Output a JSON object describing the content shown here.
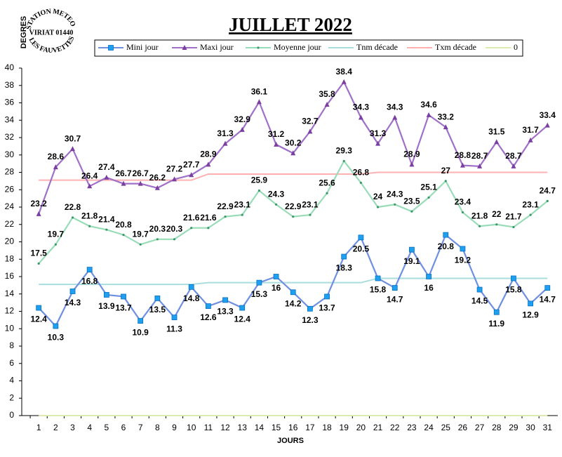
{
  "chart_data": {
    "type": "line",
    "title": "JUILLET 2022",
    "y_label": "DEGRES",
    "x_label": "JOURS",
    "logo": [
      "STATION METEO",
      "VIRIAT 01440",
      "LES FAUVETTES"
    ],
    "categories": [
      "1",
      "2",
      "3",
      "4",
      "5",
      "6",
      "7",
      "8",
      "9",
      "10",
      "11",
      "12",
      "13",
      "14",
      "15",
      "16",
      "17",
      "18",
      "19",
      "20",
      "21",
      "22",
      "23",
      "24",
      "25",
      "26",
      "27",
      "28",
      "29",
      "30",
      "31"
    ],
    "ylim": [
      0,
      40
    ],
    "yticks": [
      0,
      2,
      4,
      6,
      8,
      10,
      12,
      14,
      16,
      18,
      20,
      22,
      24,
      26,
      28,
      30,
      32,
      34,
      36,
      38,
      40
    ],
    "grid": false,
    "series": [
      {
        "name": "Mini jour",
        "color": "#6f8fe0",
        "marker_color": "#1ea0f0",
        "marker": "square",
        "labels": "below",
        "values": [
          12.4,
          10.3,
          14.3,
          16.8,
          13.9,
          13.7,
          10.9,
          13.5,
          11.3,
          14.8,
          12.6,
          13.3,
          12.4,
          15.3,
          16,
          14.2,
          12.3,
          13.7,
          18.3,
          20.5,
          15.8,
          14.7,
          19.1,
          16,
          20.8,
          19.2,
          14.5,
          11.9,
          15.8,
          12.9,
          14.7
        ]
      },
      {
        "name": "Maxi jour",
        "color": "#a070c8",
        "marker_color": "#7a3fa0",
        "marker": "triangle",
        "labels": "above",
        "values": [
          23.2,
          28.6,
          30.7,
          26.4,
          27.4,
          26.7,
          26.7,
          26.2,
          27.2,
          27.7,
          28.9,
          31.3,
          32.9,
          36.1,
          31.2,
          30.2,
          32.7,
          35.8,
          38.4,
          34.3,
          31.3,
          34.3,
          28.9,
          34.6,
          33.2,
          28.8,
          28.7,
          31.5,
          28.7,
          31.7,
          33.4
        ]
      },
      {
        "name": "Moyenne jour",
        "color": "#99dcb8",
        "marker_color": "#3a9a6a",
        "marker": "dot",
        "labels": "above",
        "values": [
          17.5,
          19.7,
          22.8,
          21.8,
          21.4,
          20.8,
          19.7,
          20.3,
          20.3,
          21.6,
          21.6,
          22.9,
          23.1,
          25.9,
          24.3,
          22.9,
          23.1,
          25.6,
          29.3,
          26.8,
          24,
          24.3,
          23.5,
          25.1,
          27,
          23.4,
          21.8,
          22,
          21.7,
          23.1,
          24.7
        ]
      },
      {
        "name": "Tnm décade",
        "color": "#aadede",
        "values": [
          15.1,
          15.1,
          15.1,
          15.1,
          15.1,
          15.1,
          15.1,
          15.1,
          15.1,
          15.1,
          15.3,
          15.3,
          15.3,
          15.3,
          15.3,
          15.3,
          15.3,
          15.3,
          15.3,
          15.3,
          15.8,
          15.8,
          15.8,
          15.8,
          15.8,
          15.8,
          15.8,
          15.8,
          15.8,
          15.8,
          15.8
        ]
      },
      {
        "name": "Txm décade",
        "color": "#ffb0b0",
        "values": [
          27.1,
          27.1,
          27.1,
          27.1,
          27.1,
          27.1,
          27.1,
          27.1,
          27.1,
          27.1,
          27.8,
          27.8,
          27.8,
          27.8,
          27.8,
          27.8,
          27.8,
          27.8,
          27.8,
          27.8,
          28,
          28,
          28,
          28,
          28,
          28,
          28,
          28,
          28,
          28,
          28
        ]
      },
      {
        "name": "0",
        "color": "#dcebb0",
        "values": [
          0,
          0,
          0,
          0,
          0,
          0,
          0,
          0,
          0,
          0,
          0,
          0,
          0,
          0,
          0,
          0,
          0,
          0,
          0,
          0,
          0,
          0,
          0,
          0,
          0,
          0,
          0,
          0,
          0,
          0,
          0
        ]
      }
    ]
  }
}
